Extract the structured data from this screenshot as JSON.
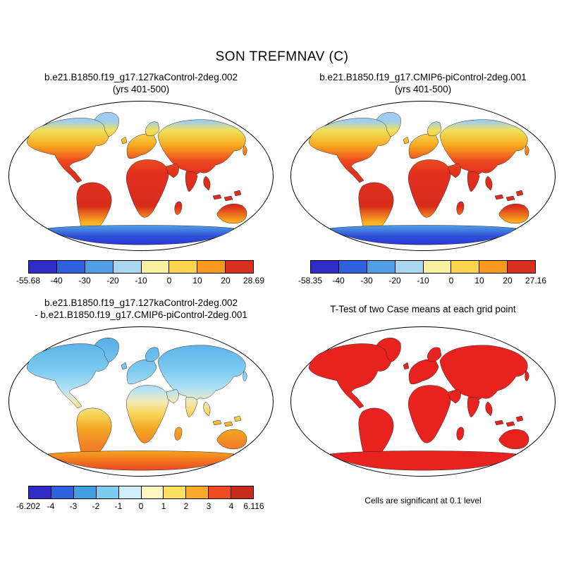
{
  "figure": {
    "title": "SON TREFMNAV (C)"
  },
  "chart_data": [
    {
      "type": "heatmap",
      "subtype": "global-temperature-map",
      "projection": "robinson",
      "variable": "TREFMNAV",
      "season": "SON",
      "units": "C",
      "title": "b.e21.B1850.f19_g17.127kaControl-2deg.002",
      "subtitle": "(yrs 401-500)",
      "map_style": "warm",
      "colorbar": {
        "min": -55.68,
        "max": 28.69,
        "tick_labels": [
          "-55.68",
          "-40",
          "-30",
          "-20",
          "-10",
          "0",
          "10",
          "20",
          "28.69"
        ],
        "segment_colors": [
          "#2f2cc7",
          "#2f62df",
          "#4f9fe6",
          "#a9d7f2",
          "#f9f1a0",
          "#fdd44e",
          "#f89a1e",
          "#d93020"
        ]
      }
    },
    {
      "type": "heatmap",
      "subtype": "global-temperature-map",
      "projection": "robinson",
      "variable": "TREFMNAV",
      "season": "SON",
      "units": "C",
      "title": "b.e21.B1850.f19_g17.CMIP6-piControl-2deg.001",
      "subtitle": "(yrs 401-500)",
      "map_style": "warm",
      "colorbar": {
        "min": -58.35,
        "max": 27.16,
        "tick_labels": [
          "-58.35",
          "-40",
          "-30",
          "-20",
          "-10",
          "0",
          "10",
          "20",
          "27.16"
        ],
        "segment_colors": [
          "#2f2cc7",
          "#2f62df",
          "#4f9fe6",
          "#a9d7f2",
          "#f9f1a0",
          "#fdd44e",
          "#f89a1e",
          "#d93020"
        ]
      }
    },
    {
      "type": "heatmap",
      "subtype": "difference-map",
      "projection": "robinson",
      "variable": "TREFMNAV",
      "season": "SON",
      "units": "C",
      "title": "b.e21.B1850.f19_g17.127kaControl-2deg.002",
      "subtitle": "- b.e21.B1850.f19_g17.CMIP6-piControl-2deg.001",
      "map_style": "diff",
      "colorbar": {
        "min": -6.202,
        "max": 6.116,
        "tick_labels": [
          "-6.202",
          "-4",
          "-3",
          "-2",
          "-1",
          "0",
          "1",
          "2",
          "3",
          "4",
          "6.116"
        ],
        "segment_colors": [
          "#2f2cc7",
          "#2f62df",
          "#3f9fe0",
          "#7ecbf0",
          "#cdeffa",
          "#fdf6c0",
          "#fde05e",
          "#fba929",
          "#ef4a20",
          "#c62b1c"
        ]
      }
    },
    {
      "type": "map",
      "subtype": "significance-mask",
      "projection": "robinson",
      "title": "T-Test of two Case means at each grid point",
      "note": "Cells are significant at 0.1 level",
      "map_style": "ttest",
      "significant_color": "#e8231f"
    }
  ],
  "map_fills": {
    "warm": {
      "land_stops": [
        [
          "0%",
          "#9fcdef"
        ],
        [
          "14%",
          "#9fcdef"
        ],
        [
          "20%",
          "#efe25a"
        ],
        [
          "30%",
          "#f8a81f"
        ],
        [
          "40%",
          "#ec4a1f"
        ],
        [
          "48%",
          "#e2301e"
        ],
        [
          "70%",
          "#d92c1c"
        ],
        [
          "80%",
          "#f8a81f"
        ],
        [
          "88%",
          "#efe25a"
        ]
      ],
      "antarctica_stops": [
        [
          "0%",
          "#55a8e8"
        ],
        [
          "50%",
          "#2f50d8"
        ],
        [
          "100%",
          "#2b2bd5"
        ]
      ]
    },
    "diff": {
      "land_stops": [
        [
          "0%",
          "#4aa0e4"
        ],
        [
          "15%",
          "#62b8ea"
        ],
        [
          "30%",
          "#7ecbf0"
        ],
        [
          "42%",
          "#b5e2f5"
        ],
        [
          "50%",
          "#f2e8b8"
        ],
        [
          "58%",
          "#f6d75a"
        ],
        [
          "68%",
          "#f5a623"
        ],
        [
          "80%",
          "#f08028"
        ],
        [
          "100%",
          "#ee6a22"
        ]
      ],
      "antarctica_stops": [
        [
          "0%",
          "#f8a81f"
        ],
        [
          "100%",
          "#e8391f"
        ]
      ]
    },
    "ttest": {
      "land_stops": [
        [
          "0%",
          "#e8231f"
        ],
        [
          "100%",
          "#e8231f"
        ]
      ],
      "antarctica_stops": [
        [
          "0%",
          "#e8231f"
        ],
        [
          "100%",
          "#e8231f"
        ]
      ]
    }
  }
}
